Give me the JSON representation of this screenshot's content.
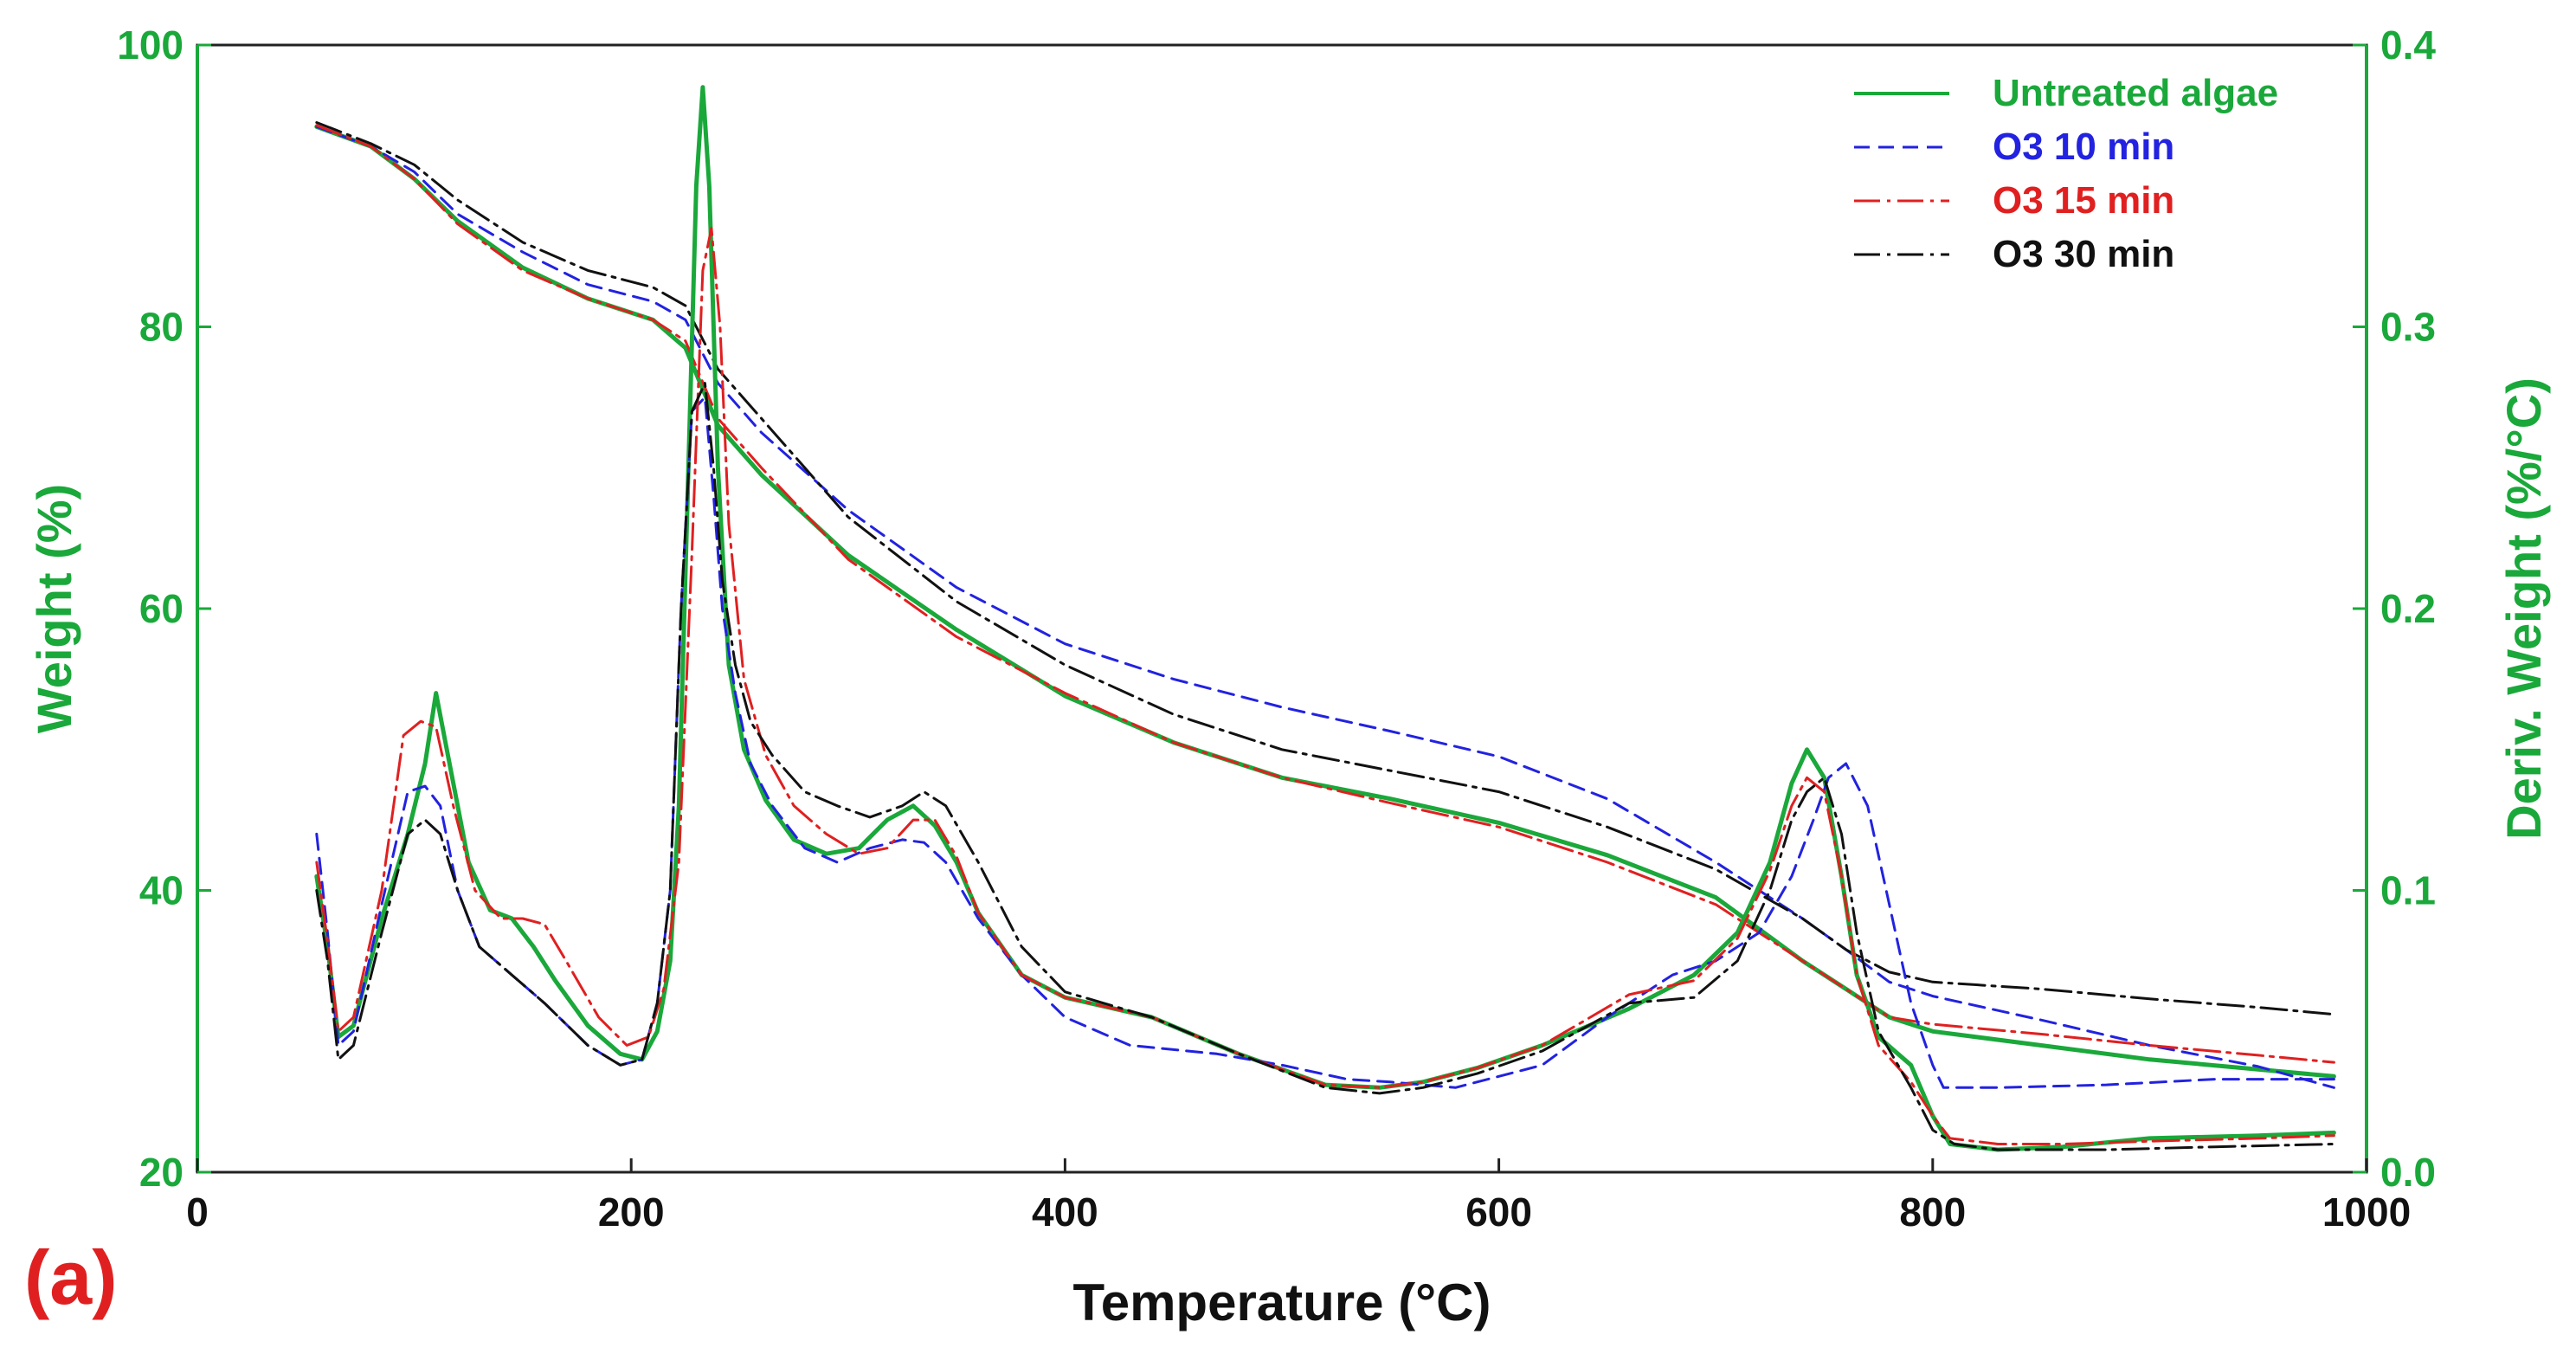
{
  "colors": {
    "green": "#1aa83a",
    "blue": "#2222e0",
    "red": "#e02020",
    "black": "#111111"
  },
  "panel_label": "(a)",
  "chart_data": {
    "type": "line",
    "xlabel": "Temperature (°C)",
    "ylabel_left": "Weight (%)",
    "ylabel_right": "Deriv. Weight (%/°C)",
    "xlim": [
      0,
      1000
    ],
    "ylim_left": [
      20,
      100
    ],
    "ylim_right": [
      0.0,
      0.4
    ],
    "x_ticks": [
      "0",
      "200",
      "400",
      "600",
      "800",
      "1000"
    ],
    "y_left_ticks": [
      "20",
      "40",
      "60",
      "80",
      "100"
    ],
    "y_right_ticks": [
      "0.0",
      "0.1",
      "0.2",
      "0.3",
      "0.4"
    ],
    "legend": {
      "position": "top-right",
      "entries": [
        {
          "label": "Untreated algae",
          "color": "#1aa83a",
          "dash": "solid"
        },
        {
          "label": "O3  10 min",
          "color": "#2222e0",
          "dash": "dashed"
        },
        {
          "label": "O3  15 min",
          "color": "#e02020",
          "dash": "dash-dot"
        },
        {
          "label": "O3  30 min",
          "color": "#111111",
          "dash": "dash-dot"
        }
      ]
    },
    "series": [
      {
        "name": "Untreated algae - Weight",
        "axis": "left",
        "color": "#1aa83a",
        "dash": "solid",
        "x": [
          55,
          80,
          100,
          120,
          150,
          180,
          210,
          225,
          240,
          260,
          300,
          350,
          400,
          450,
          500,
          550,
          600,
          650,
          700,
          740,
          760,
          780,
          800,
          850,
          900,
          950,
          985
        ],
        "y": [
          94.2,
          92.8,
          90.5,
          87.5,
          84.2,
          82.0,
          80.5,
          78.5,
          73.0,
          69.5,
          63.8,
          58.5,
          53.8,
          50.5,
          48.0,
          46.5,
          44.8,
          42.5,
          39.5,
          35.0,
          33.0,
          31.0,
          30.0,
          29.0,
          28.0,
          27.3,
          26.8
        ]
      },
      {
        "name": "O3 10 min - Weight",
        "axis": "left",
        "color": "#2222e0",
        "dash": "dashed",
        "x": [
          55,
          80,
          100,
          120,
          150,
          180,
          210,
          225,
          240,
          260,
          300,
          350,
          400,
          450,
          500,
          550,
          600,
          650,
          700,
          740,
          760,
          780,
          800,
          850,
          900,
          950,
          985
        ],
        "y": [
          94.2,
          92.8,
          91.0,
          88.0,
          85.3,
          83.0,
          81.8,
          80.5,
          76.0,
          72.5,
          67.0,
          61.5,
          57.5,
          55.0,
          53.0,
          51.3,
          49.5,
          46.5,
          42.0,
          38.0,
          35.8,
          33.5,
          32.5,
          30.8,
          29.0,
          27.5,
          26.0
        ]
      },
      {
        "name": "O3 15 min - Weight",
        "axis": "left",
        "color": "#e02020",
        "dash": "dash-dot",
        "x": [
          55,
          80,
          100,
          120,
          150,
          180,
          210,
          225,
          240,
          260,
          300,
          350,
          400,
          450,
          500,
          550,
          600,
          650,
          700,
          740,
          760,
          780,
          800,
          850,
          900,
          950,
          985
        ],
        "y": [
          94.3,
          92.8,
          90.5,
          87.3,
          84.0,
          82.0,
          80.5,
          79.0,
          73.5,
          70.0,
          63.5,
          58.0,
          54.0,
          50.5,
          48.0,
          46.2,
          44.5,
          42.0,
          39.0,
          35.0,
          33.0,
          31.0,
          30.5,
          29.8,
          29.0,
          28.3,
          27.8
        ]
      },
      {
        "name": "O3 30 min - Weight",
        "axis": "left",
        "color": "#111111",
        "dash": "dash-dot",
        "x": [
          55,
          80,
          100,
          120,
          150,
          180,
          210,
          225,
          240,
          260,
          300,
          350,
          400,
          450,
          500,
          550,
          600,
          650,
          700,
          740,
          760,
          780,
          800,
          850,
          900,
          950,
          985
        ],
        "y": [
          94.5,
          93.0,
          91.5,
          89.0,
          86.0,
          84.0,
          82.8,
          81.5,
          77.0,
          73.5,
          66.5,
          60.5,
          56.0,
          52.5,
          50.0,
          48.5,
          47.0,
          44.5,
          41.5,
          38.0,
          35.8,
          34.2,
          33.5,
          33.0,
          32.3,
          31.7,
          31.2
        ]
      },
      {
        "name": "Untreated algae - Deriv. Weight",
        "axis": "right",
        "color": "#1aa83a",
        "dash": "solid",
        "x": [
          55,
          60,
          65,
          72,
          85,
          97,
          105,
          110,
          115,
          125,
          135,
          145,
          155,
          165,
          180,
          195,
          205,
          212,
          218,
          222,
          226,
          230,
          233,
          236,
          240,
          245,
          252,
          262,
          275,
          290,
          305,
          318,
          330,
          340,
          350,
          360,
          380,
          400,
          440,
          480,
          520,
          545,
          565,
          590,
          620,
          660,
          690,
          710,
          725,
          735,
          742,
          750,
          758,
          765,
          775,
          790,
          800,
          808,
          830,
          860,
          900,
          950,
          985
        ],
        "y": [
          0.105,
          0.08,
          0.048,
          0.052,
          0.09,
          0.12,
          0.145,
          0.17,
          0.15,
          0.11,
          0.093,
          0.09,
          0.08,
          0.068,
          0.052,
          0.042,
          0.04,
          0.05,
          0.075,
          0.13,
          0.24,
          0.35,
          0.385,
          0.35,
          0.25,
          0.18,
          0.15,
          0.132,
          0.118,
          0.113,
          0.115,
          0.125,
          0.13,
          0.123,
          0.11,
          0.092,
          0.07,
          0.062,
          0.055,
          0.042,
          0.031,
          0.03,
          0.032,
          0.037,
          0.045,
          0.058,
          0.07,
          0.085,
          0.11,
          0.138,
          0.15,
          0.14,
          0.105,
          0.07,
          0.048,
          0.038,
          0.02,
          0.01,
          0.008,
          0.009,
          0.012,
          0.013,
          0.014
        ]
      },
      {
        "name": "O3 10 min - Deriv. Weight",
        "axis": "right",
        "color": "#2222e0",
        "dash": "dashed",
        "x": [
          55,
          60,
          65,
          72,
          85,
          97,
          105,
          112,
          120,
          130,
          145,
          160,
          180,
          195,
          205,
          212,
          218,
          223,
          228,
          234,
          238,
          242,
          248,
          255,
          265,
          280,
          295,
          310,
          325,
          335,
          345,
          360,
          380,
          400,
          430,
          470,
          500,
          530,
          550,
          580,
          620,
          650,
          680,
          700,
          720,
          735,
          745,
          752,
          760,
          770,
          780,
          790,
          800,
          805,
          830,
          880,
          930,
          985
        ],
        "y": [
          0.12,
          0.085,
          0.045,
          0.05,
          0.095,
          0.135,
          0.137,
          0.13,
          0.1,
          0.08,
          0.07,
          0.06,
          0.045,
          0.038,
          0.04,
          0.06,
          0.1,
          0.2,
          0.27,
          0.275,
          0.24,
          0.2,
          0.17,
          0.145,
          0.13,
          0.115,
          0.11,
          0.115,
          0.118,
          0.117,
          0.11,
          0.09,
          0.07,
          0.055,
          0.045,
          0.042,
          0.038,
          0.033,
          0.032,
          0.03,
          0.038,
          0.055,
          0.07,
          0.075,
          0.085,
          0.105,
          0.125,
          0.14,
          0.145,
          0.13,
          0.095,
          0.06,
          0.038,
          0.03,
          0.03,
          0.031,
          0.033,
          0.033
        ]
      },
      {
        "name": "O3 15 min - Deriv. Weight",
        "axis": "right",
        "color": "#e02020",
        "dash": "dash-dot",
        "x": [
          55,
          60,
          65,
          72,
          85,
          95,
          103,
          110,
          118,
          128,
          140,
          150,
          160,
          170,
          185,
          198,
          208,
          215,
          222,
          228,
          233,
          237,
          241,
          245,
          252,
          262,
          275,
          290,
          305,
          318,
          330,
          340,
          350,
          360,
          380,
          400,
          440,
          480,
          520,
          545,
          565,
          590,
          620,
          660,
          690,
          710,
          725,
          735,
          742,
          750,
          758,
          765,
          775,
          790,
          800,
          808,
          830,
          860,
          900,
          950,
          985
        ],
        "y": [
          0.11,
          0.082,
          0.05,
          0.055,
          0.1,
          0.155,
          0.16,
          0.158,
          0.13,
          0.1,
          0.09,
          0.09,
          0.088,
          0.075,
          0.055,
          0.045,
          0.048,
          0.065,
          0.11,
          0.22,
          0.32,
          0.335,
          0.3,
          0.23,
          0.175,
          0.148,
          0.13,
          0.12,
          0.113,
          0.115,
          0.125,
          0.125,
          0.112,
          0.092,
          0.07,
          0.062,
          0.055,
          0.042,
          0.031,
          0.03,
          0.032,
          0.037,
          0.045,
          0.063,
          0.068,
          0.083,
          0.107,
          0.13,
          0.14,
          0.135,
          0.105,
          0.07,
          0.045,
          0.032,
          0.02,
          0.012,
          0.01,
          0.01,
          0.011,
          0.012,
          0.013
        ]
      },
      {
        "name": "O3 30 min - Deriv. Weight",
        "axis": "right",
        "color": "#111111",
        "dash": "dash-dot",
        "x": [
          55,
          60,
          65,
          72,
          85,
          97,
          105,
          112,
          120,
          130,
          145,
          160,
          180,
          195,
          205,
          212,
          218,
          223,
          228,
          234,
          238,
          242,
          248,
          255,
          265,
          280,
          295,
          310,
          325,
          335,
          345,
          360,
          380,
          400,
          440,
          480,
          520,
          545,
          565,
          590,
          620,
          660,
          690,
          710,
          725,
          735,
          742,
          750,
          758,
          765,
          775,
          790,
          800,
          810,
          830,
          880,
          930,
          985
        ],
        "y": [
          0.1,
          0.075,
          0.04,
          0.045,
          0.085,
          0.12,
          0.125,
          0.12,
          0.1,
          0.08,
          0.07,
          0.06,
          0.045,
          0.038,
          0.04,
          0.06,
          0.1,
          0.2,
          0.27,
          0.28,
          0.25,
          0.21,
          0.18,
          0.16,
          0.148,
          0.135,
          0.13,
          0.126,
          0.13,
          0.135,
          0.13,
          0.11,
          0.08,
          0.064,
          0.055,
          0.042,
          0.03,
          0.028,
          0.03,
          0.035,
          0.043,
          0.06,
          0.062,
          0.075,
          0.1,
          0.125,
          0.135,
          0.14,
          0.12,
          0.085,
          0.05,
          0.03,
          0.015,
          0.01,
          0.008,
          0.008,
          0.009,
          0.01
        ]
      }
    ]
  }
}
